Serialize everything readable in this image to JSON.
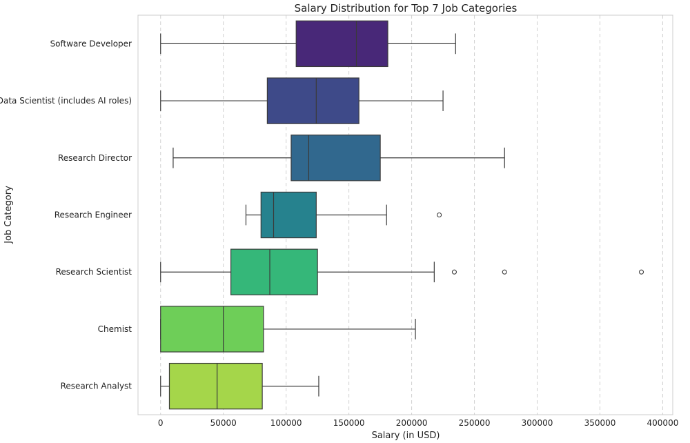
{
  "chart_data": {
    "type": "box",
    "orientation": "horizontal",
    "title": "Salary Distribution for Top 7 Job Categories",
    "xlabel": "Salary (in USD)",
    "ylabel": "Job Category",
    "xlim": [
      -18000,
      408000
    ],
    "xticks": [
      0,
      50000,
      100000,
      150000,
      200000,
      250000,
      300000,
      350000,
      400000
    ],
    "xtick_labels": [
      "0",
      "50000",
      "100000",
      "150000",
      "200000",
      "250000",
      "300000",
      "350000",
      "400000"
    ],
    "grid": "vertical dashed",
    "categories": [
      "Software Developer",
      "Data Scientist (includes AI roles)",
      "Research Director",
      "Research Engineer",
      "Research Scientist",
      "Chemist",
      "Research Analyst"
    ],
    "boxes": [
      {
        "category": "Software Developer",
        "whisker_low": 0,
        "q1": 108000,
        "median": 156000,
        "q3": 181000,
        "whisker_high": 235000,
        "outliers": [],
        "color": "#482878"
      },
      {
        "category": "Data Scientist (includes AI roles)",
        "whisker_low": 0,
        "q1": 85000,
        "median": 124000,
        "q3": 158000,
        "whisker_high": 225000,
        "outliers": [],
        "color": "#3e4a89"
      },
      {
        "category": "Research Director",
        "whisker_low": 10000,
        "q1": 104000,
        "median": 118000,
        "q3": 175000,
        "whisker_high": 274000,
        "outliers": [],
        "color": "#31688e"
      },
      {
        "category": "Research Engineer",
        "whisker_low": 68000,
        "q1": 80000,
        "median": 90000,
        "q3": 124000,
        "whisker_high": 180000,
        "outliers": [
          222000
        ],
        "color": "#26828e"
      },
      {
        "category": "Research Scientist",
        "whisker_low": 0,
        "q1": 56000,
        "median": 87000,
        "q3": 125000,
        "whisker_high": 218000,
        "outliers": [
          234000,
          274000,
          383000
        ],
        "color": "#35b779"
      },
      {
        "category": "Chemist",
        "whisker_low": 0,
        "q1": 0,
        "median": 50000,
        "q3": 82000,
        "whisker_high": 203000,
        "outliers": [],
        "color": "#6ece58"
      },
      {
        "category": "Research Analyst",
        "whisker_low": 0,
        "q1": 7000,
        "median": 45000,
        "q3": 81000,
        "whisker_high": 126000,
        "outliers": [],
        "color": "#a5d64a"
      }
    ]
  }
}
